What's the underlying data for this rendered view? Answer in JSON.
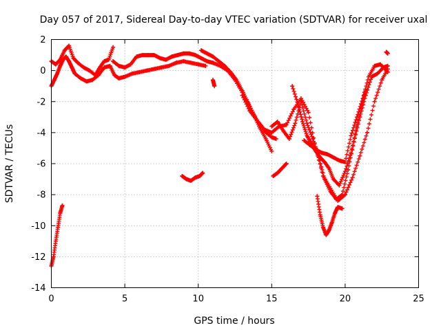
{
  "chart_data": {
    "type": "scatter",
    "title": "Day 057 of 2017, Sidereal Day-to-day VTEC variation (SDTVAR) for receiver uxal",
    "xlabel": "GPS time / hours",
    "ylabel": "SDTVAR / TECUs",
    "xlim": [
      0,
      25
    ],
    "ylim": [
      -14,
      2
    ],
    "xticks": [
      0,
      5,
      10,
      15,
      20,
      25
    ],
    "yticks": [
      -14,
      -12,
      -10,
      -8,
      -6,
      -4,
      -2,
      0,
      2
    ],
    "grid": true,
    "marker": "+",
    "color": "#ff0000",
    "series": [
      {
        "name": "s1",
        "x": [
          0,
          0.2,
          0.4,
          0.6,
          0.8,
          1.0,
          1.2,
          1.4,
          1.6,
          2.0,
          2.4,
          2.8,
          3.2,
          3.6,
          4.0,
          4.3,
          4.6,
          5.0,
          5.5,
          6.0,
          6.5,
          7.0,
          7.5,
          8.0,
          8.5,
          9.0,
          9.5,
          10.0,
          10.5
        ],
        "y": [
          -1.0,
          -0.6,
          -0.2,
          0.3,
          0.7,
          0.9,
          0.6,
          0.2,
          -0.2,
          -0.5,
          -0.7,
          -0.6,
          -0.3,
          0.2,
          0.3,
          -0.3,
          -0.5,
          -0.4,
          -0.2,
          -0.1,
          0.0,
          0.1,
          0.2,
          0.3,
          0.5,
          0.6,
          0.5,
          0.4,
          0.3
        ]
      },
      {
        "name": "s2",
        "x": [
          0,
          0.3,
          0.6,
          0.9,
          1.2,
          1.5,
          1.8,
          2.2,
          2.6,
          3.0,
          3.3,
          3.6,
          3.9,
          4.2
        ],
        "y": [
          0.6,
          0.4,
          0.7,
          1.3,
          1.6,
          0.8,
          0.5,
          0.2,
          0.0,
          -0.3,
          0.2,
          0.6,
          0.7,
          1.5
        ]
      },
      {
        "name": "s3",
        "x": [
          4.2,
          4.6,
          5.0,
          5.4,
          5.8,
          6.2,
          6.6,
          7.0,
          7.4,
          7.8,
          8.2,
          8.6,
          9.0,
          9.4,
          9.8,
          10.2,
          10.6,
          11.0,
          11.5,
          12.0,
          12.5,
          13.0,
          13.5,
          14.0,
          14.5,
          15.0,
          15.3
        ],
        "y": [
          0.6,
          0.3,
          0.2,
          0.4,
          0.9,
          1.0,
          1.0,
          1.0,
          0.8,
          0.7,
          0.9,
          1.0,
          1.1,
          1.1,
          1.0,
          0.8,
          0.6,
          0.5,
          0.3,
          0.0,
          -0.6,
          -1.4,
          -2.3,
          -3.2,
          -3.9,
          -4.3,
          -4.4
        ]
      },
      {
        "name": "s4",
        "x": [
          10.2,
          10.6,
          11.0,
          11.4,
          11.8,
          12.2,
          12.6,
          13.0,
          13.4,
          13.8,
          14.2,
          14.6,
          15.0
        ],
        "y": [
          1.3,
          1.1,
          0.9,
          0.6,
          0.3,
          -0.1,
          -0.6,
          -1.3,
          -2.1,
          -2.9,
          -3.7,
          -4.4,
          -5.2
        ]
      },
      {
        "name": "s5",
        "x": [
          13.0,
          13.5,
          14.0,
          14.5,
          15.0,
          15.5,
          16.0,
          16.5,
          17.0,
          17.5,
          18.0,
          18.5,
          19.0,
          19.5,
          20.0,
          20.5,
          21.0,
          21.5,
          22.0,
          22.5,
          22.9
        ],
        "y": [
          -1.6,
          -2.6,
          -3.2,
          -3.8,
          -4.0,
          -3.6,
          -3.5,
          -2.5,
          -1.8,
          -2.7,
          -5.0,
          -6.8,
          -7.6,
          -8.4,
          -8.0,
          -6.9,
          -5.5,
          -4.0,
          -2.0,
          -0.6,
          0.1
        ]
      },
      {
        "name": "s6",
        "x": [
          15.0,
          15.4,
          15.8,
          16.2,
          16.6,
          17.0,
          17.4,
          17.8,
          18.2,
          18.6,
          19.0,
          19.4,
          19.8,
          20.2,
          20.6,
          21.0,
          21.4,
          21.8,
          22.2,
          22.6,
          22.9
        ],
        "y": [
          -3.6,
          -3.3,
          -3.9,
          -4.4,
          -3.4,
          -2.0,
          -3.4,
          -4.4,
          -5.6,
          -7.0,
          -7.8,
          -8.3,
          -8.0,
          -6.4,
          -4.6,
          -3.0,
          -1.6,
          -0.4,
          -0.2,
          0.2,
          0.3
        ]
      },
      {
        "name": "s7",
        "x": [
          17.2,
          17.6,
          18.0,
          18.4,
          18.8,
          19.2,
          19.6,
          20.0,
          20.4,
          20.8,
          21.2,
          21.6,
          22.0,
          22.4,
          22.9
        ],
        "y": [
          -4.5,
          -4.8,
          -5.1,
          -5.3,
          -5.4,
          -5.6,
          -5.8,
          -5.9,
          -4.2,
          -3.0,
          -1.8,
          -0.4,
          0.3,
          0.4,
          -0.1
        ]
      },
      {
        "name": "s8",
        "x": [
          16.4,
          16.8,
          17.1,
          17.4,
          17.7,
          18.0,
          18.3,
          18.6,
          18.9,
          19.2,
          19.6,
          20.0,
          20.4,
          20.8,
          21.2,
          21.4
        ],
        "y": [
          -1.0,
          -2.2,
          -3.3,
          -4.2,
          -4.7,
          -5.2,
          -5.6,
          -5.9,
          -6.3,
          -7.0,
          -7.4,
          -6.5,
          -5.3,
          -3.6,
          -2.0,
          -1.2
        ]
      },
      {
        "name": "s9",
        "x": [
          18.1,
          18.3,
          18.5,
          18.7,
          18.9,
          19.1,
          19.3,
          19.5,
          19.8
        ],
        "y": [
          -8.1,
          -9.3,
          -10.1,
          -10.6,
          -10.3,
          -9.8,
          -9.2,
          -8.8,
          -8.9
        ]
      },
      {
        "name": "s10",
        "x": [
          15.1,
          15.4,
          15.7,
          16.0
        ],
        "y": [
          -6.8,
          -6.6,
          -6.3,
          -6.0
        ]
      },
      {
        "name": "s11",
        "x": [
          8.9,
          9.2,
          9.5,
          9.8,
          10.1,
          10.3
        ],
        "y": [
          -6.8,
          -7.0,
          -7.1,
          -6.9,
          -6.8,
          -6.6
        ]
      },
      {
        "name": "s12",
        "x": [
          0,
          0.15,
          0.3,
          0.45,
          0.6,
          0.75
        ],
        "y": [
          -12.6,
          -12.0,
          -11.0,
          -10.1,
          -9.2,
          -8.7
        ]
      },
      {
        "name": "s13",
        "x": [
          11.0,
          11.1
        ],
        "y": [
          -0.6,
          -1.0
        ]
      },
      {
        "name": "s14",
        "x": [
          22.8,
          22.9
        ],
        "y": [
          1.2,
          1.1
        ]
      }
    ]
  }
}
